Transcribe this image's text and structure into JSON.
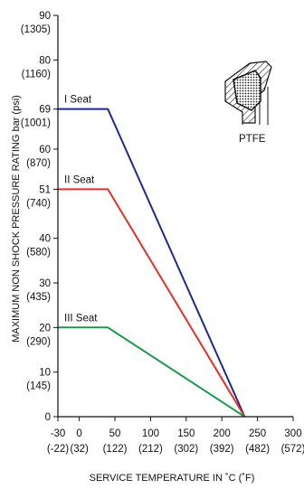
{
  "chart_data": {
    "type": "line",
    "title": "",
    "xlabel": "SERVICE TEMPERATURE  IN  ˚C (˚F)",
    "ylabel": "MAXIMUM NON SHOCK PRESSURE RATING bar (psi)",
    "xlim": [
      -30,
      300
    ],
    "ylim": [
      0,
      90
    ],
    "grid": false,
    "x_ticks": [
      {
        "value": -30,
        "label": "-30",
        "sub": "(-22)"
      },
      {
        "value": 0,
        "label": "0",
        "sub": "(32)"
      },
      {
        "value": 50,
        "label": "50",
        "sub": "(122)"
      },
      {
        "value": 100,
        "label": "100",
        "sub": "(212)"
      },
      {
        "value": 150,
        "label": "150",
        "sub": "(302)"
      },
      {
        "value": 200,
        "label": "200",
        "sub": "(392)"
      },
      {
        "value": 250,
        "label": "250",
        "sub": "(482)"
      },
      {
        "value": 300,
        "label": "300",
        "sub": "(572)"
      }
    ],
    "y_ticks": [
      {
        "value": 0,
        "label": "0",
        "sub": ""
      },
      {
        "value": 10,
        "label": "10",
        "sub": "(145)"
      },
      {
        "value": 20,
        "label": "20",
        "sub": "(290)"
      },
      {
        "value": 30,
        "label": "30",
        "sub": "(435)"
      },
      {
        "value": 40,
        "label": "40",
        "sub": "(580)"
      },
      {
        "value": 51,
        "label": "51",
        "sub": "(740)"
      },
      {
        "value": 60,
        "label": "60",
        "sub": "(870)"
      },
      {
        "value": 69,
        "label": "69",
        "sub": "(1001)"
      },
      {
        "value": 80,
        "label": "80",
        "sub": "(1160)"
      },
      {
        "value": 90,
        "label": "90",
        "sub": "(1305)"
      }
    ],
    "series": [
      {
        "name": "I Seat",
        "color": "#1f2a8a",
        "x": [
          -30,
          40,
          232
        ],
        "y": [
          69,
          69,
          0
        ]
      },
      {
        "name": "II Seat",
        "color": "#e0312b",
        "x": [
          -30,
          40,
          232
        ],
        "y": [
          51,
          51,
          0
        ]
      },
      {
        "name": "III Seat",
        "color": "#1a9a4a",
        "x": [
          -30,
          40,
          232
        ],
        "y": [
          20,
          20,
          0
        ]
      }
    ],
    "inset": {
      "label": "PTFE",
      "icon": "seal-cross-section-icon"
    }
  }
}
